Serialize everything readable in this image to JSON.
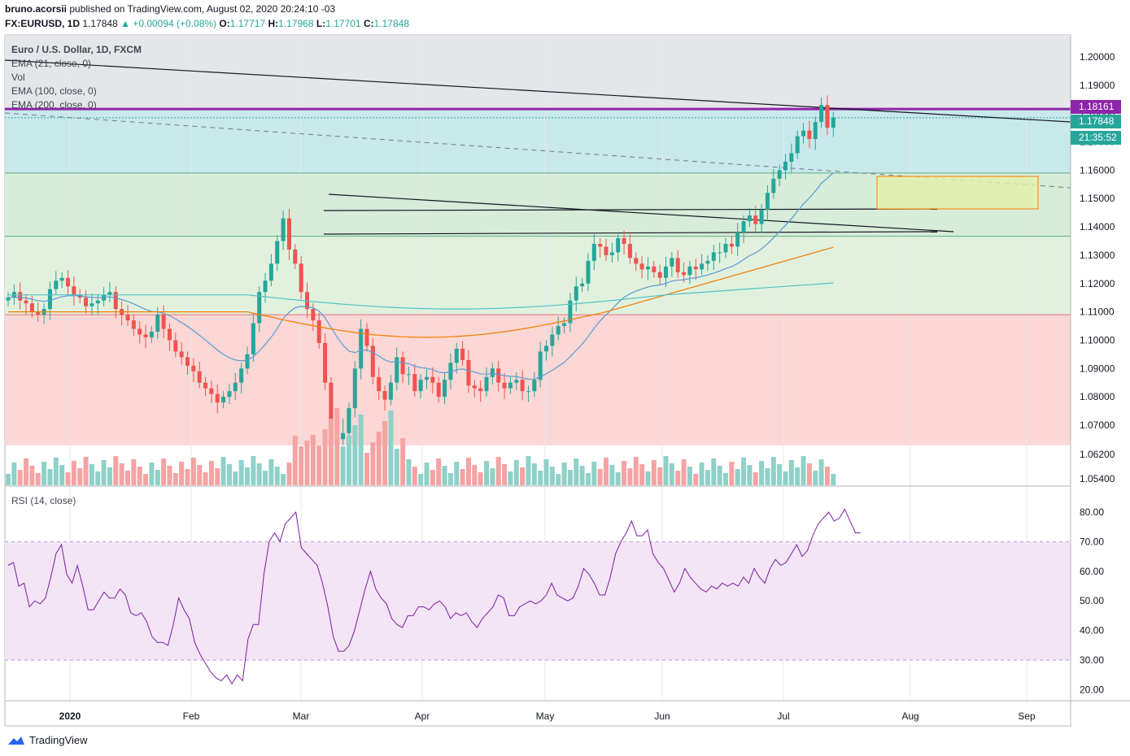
{
  "header": {
    "user": "bruno.acorsii",
    "published": "published on TradingView.com, August 02, 2020 20:24:10 -03",
    "symbol": "FX:EURUSD, 1D",
    "last": "1.17848",
    "change": "▲ +0.00094 (+0.08%)",
    "o_label": "O:",
    "o": "1.17717",
    "h_label": "H:",
    "h": "1.17968",
    "l_label": "L:",
    "l": "1.17701",
    "c_label": "C:",
    "c": "1.17848"
  },
  "legend": {
    "title": "Euro / U.S. Dollar, 1D, FXCM",
    "ema21": "EMA (21, close, 0)",
    "vol": "Vol",
    "ema100": "EMA (100, close, 0)",
    "ema200": "EMA (200, close, 0)",
    "rsi": "RSI (14, close)"
  },
  "price_labels": {
    "level": "1.18161",
    "last": "1.17848",
    "countdown": "21:35:52"
  },
  "footer": {
    "brand": "TradingView"
  },
  "colors": {
    "up": "#26a69a",
    "down": "#ef5350",
    "vol_up": "#8fd1c8",
    "vol_down": "#f5a3a3",
    "ema21": "#5b9bd5",
    "ema100": "#f57c00",
    "ema200": "#4fc3c8",
    "rsi": "#7b1fa2",
    "level": "#8e24aa"
  },
  "chart_data": [
    {
      "type": "candlestick",
      "title": "Euro / U.S. Dollar, 1D, FXCM",
      "x_ticks": [
        "2020",
        "Feb",
        "Mar",
        "Apr",
        "May",
        "Jun",
        "Jul",
        "Aug",
        "Sep"
      ],
      "y_ticks": [
        "1.20000",
        "1.19000",
        "1.18000",
        "1.17000",
        "1.16000",
        "1.15000",
        "1.14000",
        "1.13000",
        "1.12000",
        "1.11000",
        "1.10000",
        "1.09000",
        "1.08000",
        "1.07000",
        "1.06200",
        "1.05400"
      ],
      "horizontal_levels": [
        1.18161,
        1.1785,
        1.159,
        1.1367,
        1.109
      ],
      "zones": [
        {
          "from": 1.159,
          "to": 1.203,
          "color": "#c8e8ea"
        },
        {
          "from": 1.1367,
          "to": 1.159,
          "color": "#d7ecd9"
        },
        {
          "from": 1.109,
          "to": 1.1367,
          "color": "#e2f1de"
        },
        {
          "from": 1.065,
          "to": 1.109,
          "color": "#fbd7d5"
        }
      ],
      "close_series": [
        1.115,
        1.117,
        1.114,
        1.113,
        1.11,
        1.109,
        1.111,
        1.118,
        1.121,
        1.122,
        1.119,
        1.116,
        1.115,
        1.112,
        1.113,
        1.114,
        1.116,
        1.117,
        1.111,
        1.109,
        1.107,
        1.104,
        1.102,
        1.101,
        1.103,
        1.109,
        1.104,
        1.1,
        1.096,
        1.094,
        1.091,
        1.089,
        1.085,
        1.083,
        1.081,
        1.078,
        1.08,
        1.082,
        1.085,
        1.09,
        1.095,
        1.106,
        1.117,
        1.121,
        1.127,
        1.135,
        1.143,
        1.132,
        1.127,
        1.117,
        1.111,
        1.107,
        1.099,
        1.085,
        1.07,
        1.067,
        1.069,
        1.076,
        1.09,
        1.104,
        1.098,
        1.087,
        1.082,
        1.079,
        1.085,
        1.094,
        1.088,
        1.088,
        1.082,
        1.086,
        1.087,
        1.085,
        1.08,
        1.086,
        1.092,
        1.097,
        1.093,
        1.084,
        1.083,
        1.082,
        1.087,
        1.09,
        1.085,
        1.083,
        1.085,
        1.086,
        1.082,
        1.082,
        1.086,
        1.096,
        1.098,
        1.102,
        1.105,
        1.106,
        1.114,
        1.119,
        1.12,
        1.128,
        1.134,
        1.133,
        1.13,
        1.131,
        1.136,
        1.134,
        1.129,
        1.127,
        1.125,
        1.126,
        1.124,
        1.122,
        1.126,
        1.129,
        1.124,
        1.123,
        1.126,
        1.125,
        1.127,
        1.128,
        1.131,
        1.131,
        1.134,
        1.133,
        1.138,
        1.142,
        1.144,
        1.141,
        1.146,
        1.152,
        1.157,
        1.16,
        1.163,
        1.166,
        1.172,
        1.174,
        1.171,
        1.177,
        1.183,
        1.175,
        1.1785
      ],
      "volume_note": "volume histogram in lower part of price pane"
    },
    {
      "type": "line",
      "title": "RSI (14, close)",
      "y_ticks": [
        "80.00",
        "70.00",
        "60.00",
        "50.00",
        "40.00",
        "30.00",
        "20.00"
      ],
      "band": [
        30,
        70
      ],
      "values": [
        62,
        63,
        55,
        56,
        48,
        50,
        49,
        51,
        58,
        66,
        69,
        59,
        56,
        62,
        55,
        47,
        47,
        50,
        53,
        51,
        51,
        54,
        52,
        46,
        45,
        46,
        43,
        38,
        36,
        36,
        35,
        42,
        51,
        47,
        44,
        36,
        32,
        29,
        26,
        24,
        23,
        25,
        22,
        25,
        23,
        37,
        42,
        42,
        59,
        70,
        73,
        70,
        76,
        78,
        80,
        68,
        66,
        64,
        62,
        56,
        48,
        38,
        33,
        33,
        35,
        40,
        47,
        54,
        60,
        54,
        51,
        49,
        44,
        42,
        41,
        45,
        45,
        48,
        48,
        47,
        49,
        50,
        48,
        44,
        46,
        45,
        46,
        43,
        41,
        44,
        46,
        48,
        52,
        51,
        45,
        45,
        48,
        49,
        50,
        49,
        50,
        52,
        56,
        52,
        51,
        50,
        51,
        55,
        61,
        59,
        56,
        52,
        52,
        58,
        66,
        70,
        73,
        77,
        72,
        72,
        74,
        66,
        63,
        61,
        57,
        53,
        56,
        61,
        58,
        56,
        54,
        53,
        55,
        54,
        56,
        55,
        56,
        55,
        58,
        56,
        61,
        58,
        56,
        61,
        64,
        62,
        63,
        66,
        69,
        65,
        67,
        72,
        76,
        78,
        80,
        77,
        78,
        81,
        77,
        73,
        73
      ]
    }
  ]
}
